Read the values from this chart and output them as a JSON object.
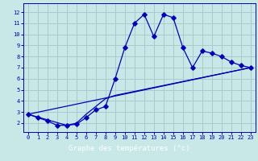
{
  "xlabel": "Graphe des températures (°c)",
  "bg_color": "#c8e8e8",
  "grid_color": "#a8cccc",
  "line_color": "#0000bb",
  "bar_color": "#003388",
  "xlim": [
    -0.5,
    23.5
  ],
  "ylim": [
    1.2,
    12.8
  ],
  "xticks": [
    0,
    1,
    2,
    3,
    4,
    5,
    6,
    7,
    8,
    9,
    10,
    11,
    12,
    13,
    14,
    15,
    16,
    17,
    18,
    19,
    20,
    21,
    22,
    23
  ],
  "yticks": [
    2,
    3,
    4,
    5,
    6,
    7,
    8,
    9,
    10,
    11,
    12
  ],
  "line1_x": [
    0,
    1,
    2,
    3,
    4,
    5,
    6,
    7,
    8,
    9,
    10,
    11,
    12,
    13,
    14,
    15,
    16,
    17,
    18,
    19,
    20,
    21,
    22,
    23
  ],
  "line1_y": [
    2.8,
    2.5,
    2.2,
    1.8,
    1.8,
    1.9,
    2.5,
    3.2,
    3.5,
    6.0,
    8.8,
    11.0,
    11.8,
    9.8,
    11.8,
    11.5,
    8.8,
    7.0,
    8.5,
    8.3,
    8.0,
    7.5,
    7.2,
    7.0
  ],
  "line2_x": [
    0,
    23
  ],
  "line2_y": [
    2.8,
    7.0
  ],
  "line3_x": [
    0,
    4,
    5,
    6,
    7,
    8,
    9,
    23
  ],
  "line3_y": [
    2.8,
    1.8,
    2.0,
    2.8,
    3.5,
    4.2,
    4.5,
    7.0
  ]
}
